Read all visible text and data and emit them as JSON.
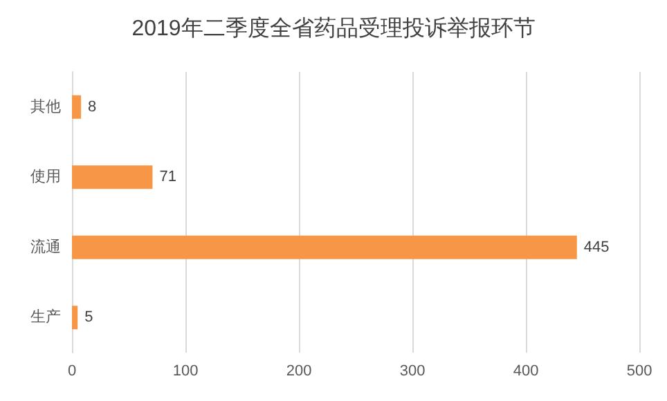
{
  "chart_data": {
    "type": "bar",
    "orientation": "horizontal",
    "title": "2019年二季度全省药品受理投诉举报环节",
    "categories": [
      "其他",
      "使用",
      "流通",
      "生产"
    ],
    "values": [
      8,
      71,
      445,
      5
    ],
    "color": "#f79646",
    "xlim": [
      0,
      500
    ],
    "xticks": [
      0,
      100,
      200,
      300,
      400,
      500
    ],
    "grid": "x",
    "data_labels": true
  }
}
